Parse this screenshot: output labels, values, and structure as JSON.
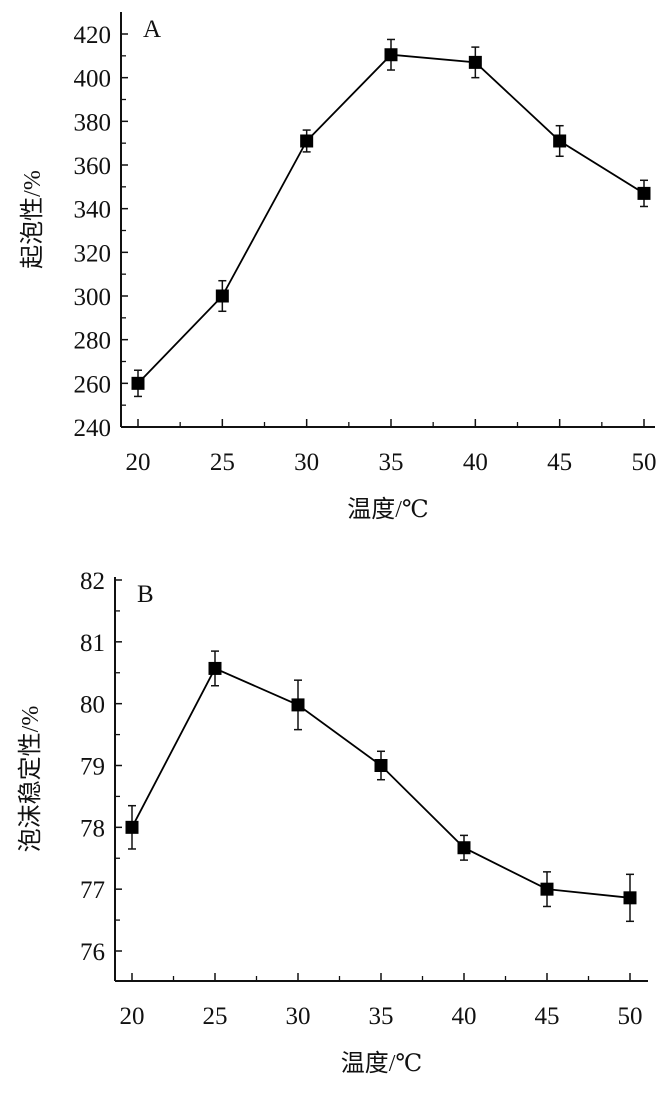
{
  "chart_data": [
    {
      "type": "line",
      "panel_label": "A",
      "xlabel": "温度/℃",
      "ylabel": "起泡性/%",
      "x": [
        20,
        25,
        30,
        35,
        40,
        45,
        50
      ],
      "xticks": [
        "20",
        "25",
        "30",
        "35",
        "40",
        "45",
        "50"
      ],
      "xlim": [
        20,
        50
      ],
      "ylim": [
        240,
        420
      ],
      "yticks": [
        "240",
        "260",
        "280",
        "300",
        "320",
        "340",
        "360",
        "380",
        "400",
        "420"
      ],
      "series": [
        {
          "name": "起泡性",
          "values": [
            260,
            300,
            371,
            410.5,
            407,
            371,
            347
          ],
          "errors": [
            6,
            7,
            5,
            7,
            7,
            7,
            6
          ],
          "marker": "square",
          "color": "#000000"
        }
      ],
      "grid": false
    },
    {
      "type": "line",
      "panel_label": "B",
      "xlabel": "温度/℃",
      "ylabel": "泡沫稳定性/%",
      "x": [
        20,
        25,
        30,
        35,
        40,
        45,
        50
      ],
      "xticks": [
        "20",
        "25",
        "30",
        "35",
        "40",
        "45",
        "50"
      ],
      "xlim": [
        20,
        50
      ],
      "ylim": [
        76,
        82
      ],
      "yticks": [
        "76",
        "77",
        "78",
        "79",
        "80",
        "81",
        "82"
      ],
      "series": [
        {
          "name": "泡沫稳定性",
          "values": [
            78.0,
            80.57,
            79.98,
            79.0,
            77.67,
            77.0,
            76.86
          ],
          "errors": [
            0.35,
            0.28,
            0.4,
            0.23,
            0.2,
            0.28,
            0.38
          ],
          "marker": "square",
          "color": "#000000"
        }
      ],
      "grid": false
    }
  ]
}
